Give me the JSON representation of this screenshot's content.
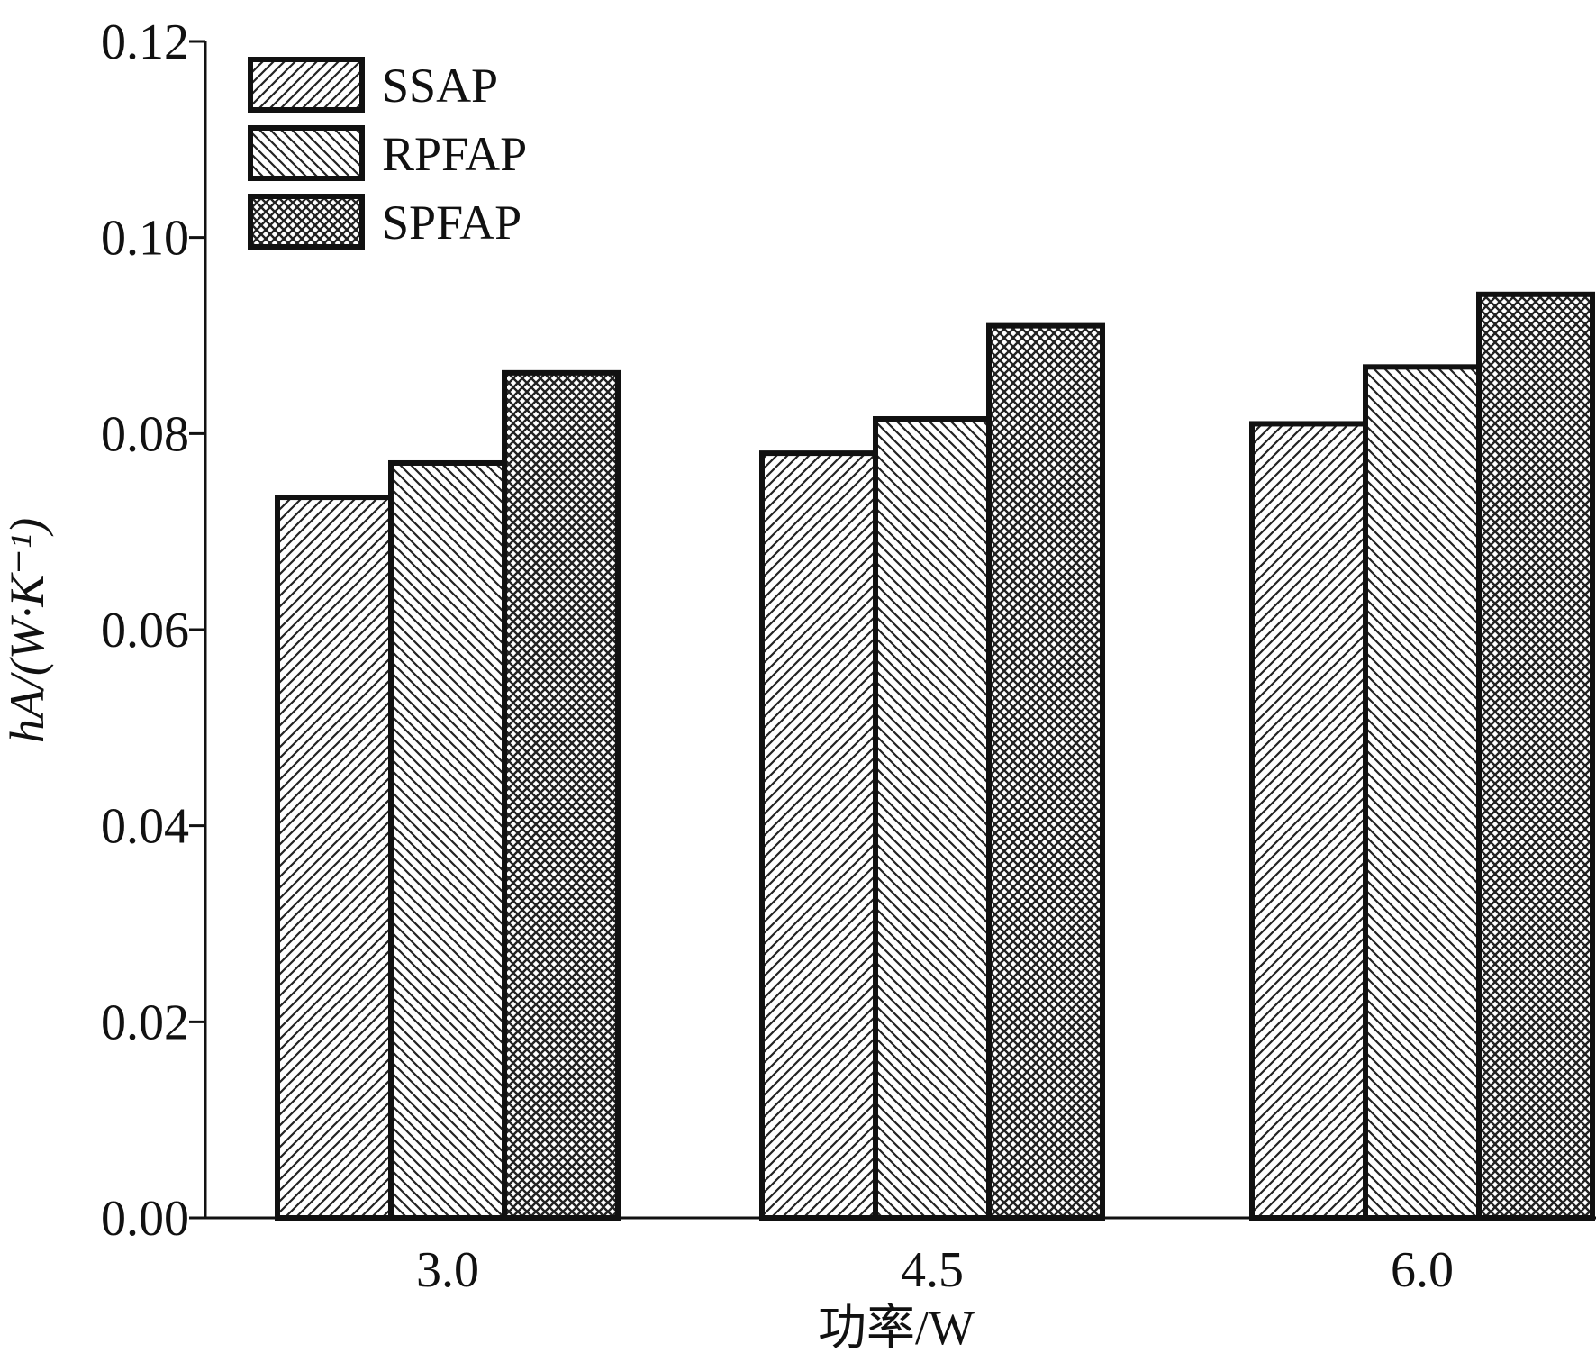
{
  "chart_data": {
    "type": "bar",
    "categories": [
      "3.0",
      "4.5",
      "6.0"
    ],
    "series": [
      {
        "name": "SSAP",
        "values": [
          0.0735,
          0.078,
          0.081
        ],
        "pattern": "hatch-fwd"
      },
      {
        "name": "RPFAP",
        "values": [
          0.077,
          0.0815,
          0.0868
        ],
        "pattern": "hatch-back"
      },
      {
        "name": "SPFAP",
        "values": [
          0.0862,
          0.091,
          0.0942
        ],
        "pattern": "crosshatch"
      }
    ],
    "xlabel": "功率/W",
    "ylabel": "hA/(W·K⁻¹)",
    "ylim": [
      0,
      0.12
    ],
    "yticks": [
      "0.00",
      "0.02",
      "0.04",
      "0.06",
      "0.08",
      "0.10",
      "0.12"
    ],
    "grid": false,
    "legend_position": "top-left"
  },
  "colors": {
    "ink": "#111111",
    "background": "#ffffff"
  }
}
